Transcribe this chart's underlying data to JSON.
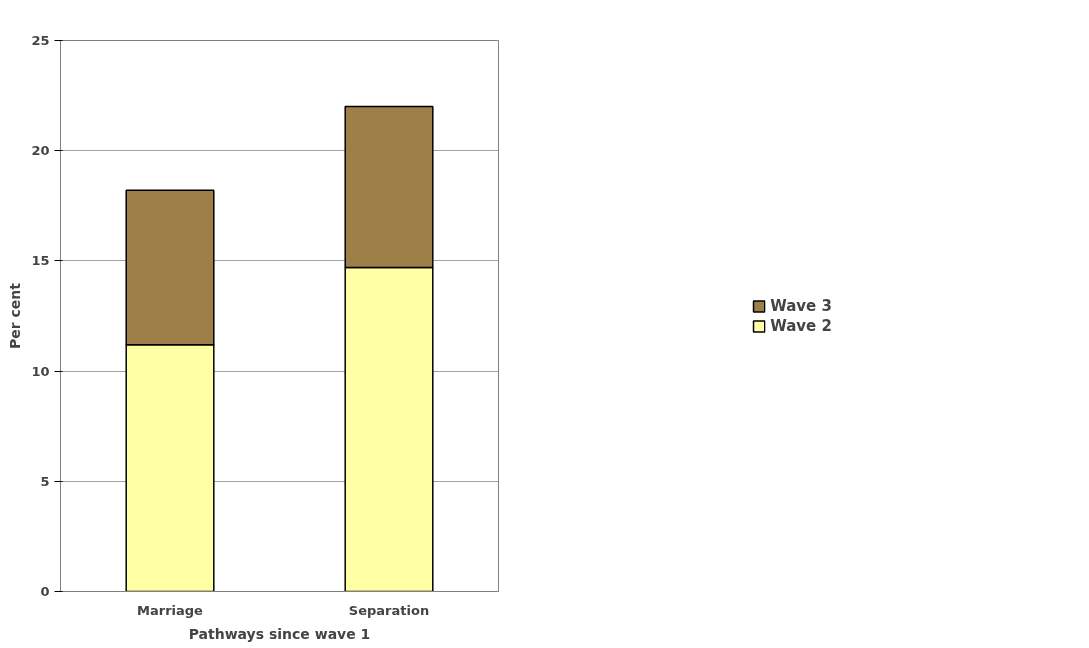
{
  "chart_data": {
    "type": "bar",
    "stacked": true,
    "xlabel": "Pathways since wave 1",
    "ylabel": "Per cent",
    "categories": [
      "Marriage",
      "Separation"
    ],
    "series": [
      {
        "name": "Wave 2",
        "color": "#ffffa6",
        "values": [
          11.2,
          14.7
        ]
      },
      {
        "name": "Wave 3",
        "color": "#9e7f47",
        "values": [
          7.0,
          7.3
        ]
      }
    ],
    "ylim": [
      0,
      25
    ],
    "yticks": [
      0,
      5,
      10,
      15,
      20,
      25
    ],
    "grid": "y",
    "legend": "right"
  }
}
